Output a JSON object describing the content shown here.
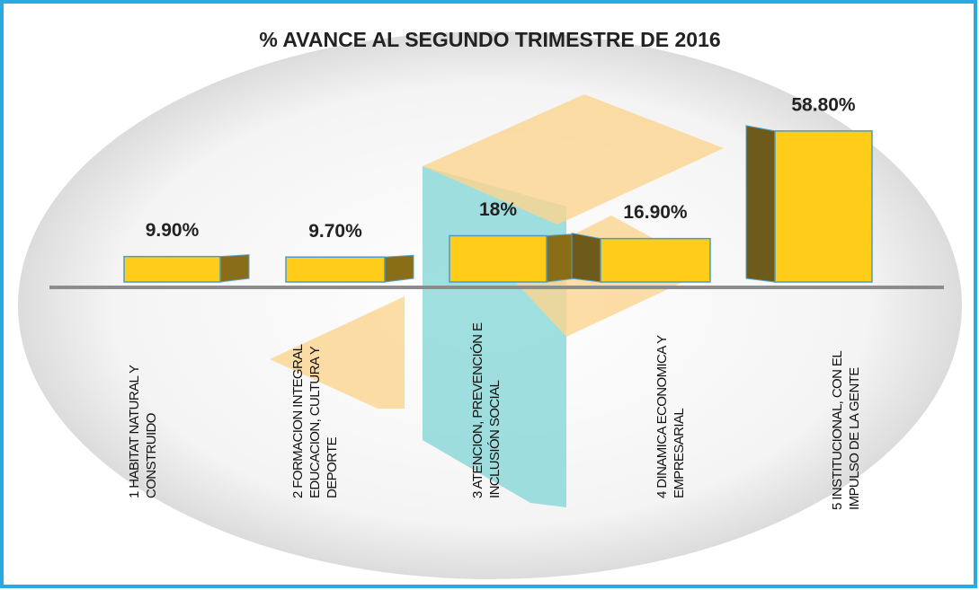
{
  "chart_data": {
    "type": "bar3d",
    "title": "% AVANCE AL SEGUNDO TRIMESTRE DE 2016",
    "categories": [
      "1  HABITAT NATURAL Y CONSTRUIDO",
      "2 FORMACION INTEGRAL EDUCACION, CULTURA Y DEPORTE",
      "3 ATENCION, PREVENCIÓN E INCLUSIÓN SOCIAL",
      "4 DINAMICA ECONOMICA Y EMPRESARIAL",
      "5 INSTITUCIONAL, CON EL IMPULSO DE LA GENTE"
    ],
    "values": [
      9.9,
      9.7,
      18,
      16.9,
      58.8
    ],
    "value_labels": [
      "9.90%",
      "9.70%",
      "18%",
      "16.90%",
      "58.80%"
    ],
    "color": "#ffcc1a"
  }
}
